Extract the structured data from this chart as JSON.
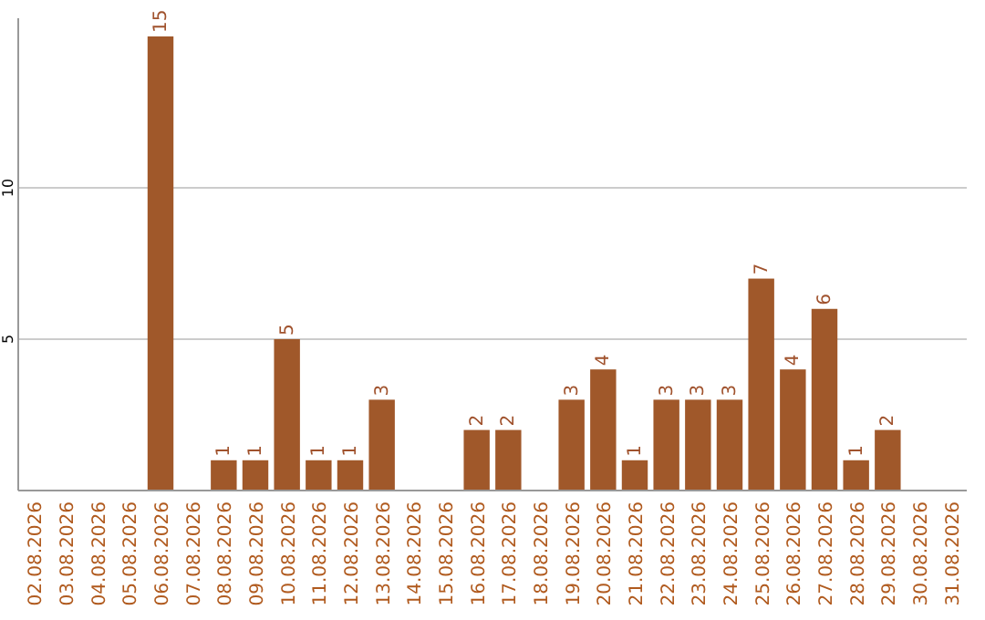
{
  "chart_data": {
    "type": "bar",
    "categories": [
      "02.08.2026",
      "03.08.2026",
      "04.08.2026",
      "05.08.2026",
      "06.08.2026",
      "07.08.2026",
      "08.08.2026",
      "09.08.2026",
      "10.08.2026",
      "11.08.2026",
      "12.08.2026",
      "13.08.2026",
      "14.08.2026",
      "15.08.2026",
      "16.08.2026",
      "17.08.2026",
      "18.08.2026",
      "19.08.2026",
      "20.08.2026",
      "21.08.2026",
      "22.08.2026",
      "23.08.2026",
      "24.08.2026",
      "25.08.2026",
      "26.08.2026",
      "27.08.2026",
      "28.08.2026",
      "29.08.2026",
      "30.08.2026",
      "31.08.2026"
    ],
    "values": [
      null,
      null,
      null,
      null,
      15,
      null,
      1,
      1,
      5,
      1,
      1,
      3,
      null,
      null,
      2,
      2,
      null,
      3,
      4,
      1,
      3,
      3,
      3,
      7,
      4,
      6,
      1,
      2,
      null,
      null
    ],
    "color": "#a0582a",
    "ylim": [
      0,
      15.6
    ],
    "yticks": [
      5,
      10
    ],
    "grid": "y",
    "data_labels": true
  }
}
